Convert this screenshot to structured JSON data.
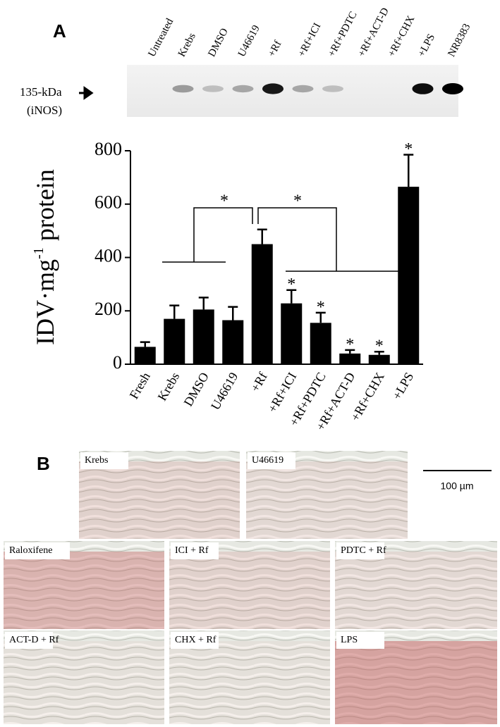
{
  "panel_labels": [
    "A",
    "B"
  ],
  "blot": {
    "lanes": [
      "Untreated",
      "Krebs",
      "DMSO",
      "U46619",
      "+Rf",
      "+Rf+ICI",
      "+Rf+PDTC",
      "+Rf+ACT-D",
      "+Rf+CHX",
      "+LPS",
      "NR8383"
    ],
    "marker": "135-kDa",
    "protein": "(iNOS)"
  },
  "chart_data": {
    "type": "bar",
    "ylabel": {
      "main": "IDV·mg",
      "sup": "-1",
      "rest": " protein"
    },
    "categories": [
      "Fresh",
      "Krebs",
      "DMSO",
      "U46619",
      "+Rf",
      "+Rf+ICI",
      "+Rf+PDTC",
      "+Rf+ACT-D",
      "+Rf+CHX",
      "+LPS"
    ],
    "values": [
      65,
      170,
      205,
      165,
      450,
      228,
      155,
      40,
      35,
      665
    ],
    "errors": [
      18,
      50,
      45,
      50,
      55,
      50,
      38,
      13,
      12,
      120
    ],
    "color": "#000000",
    "ylim": [
      0,
      800
    ],
    "yticks": [
      0,
      200,
      400,
      600,
      800
    ],
    "annotations": [
      "*",
      "*",
      "*",
      "*",
      "*",
      "*",
      "*"
    ]
  },
  "micrographs": [
    "Krebs",
    "U46619",
    "Raloxifene",
    "ICI + Rf",
    "PDTC + Rf",
    "ACT-D + Rf",
    "CHX + Rf",
    "LPS"
  ],
  "scale_bar": "100 µm"
}
